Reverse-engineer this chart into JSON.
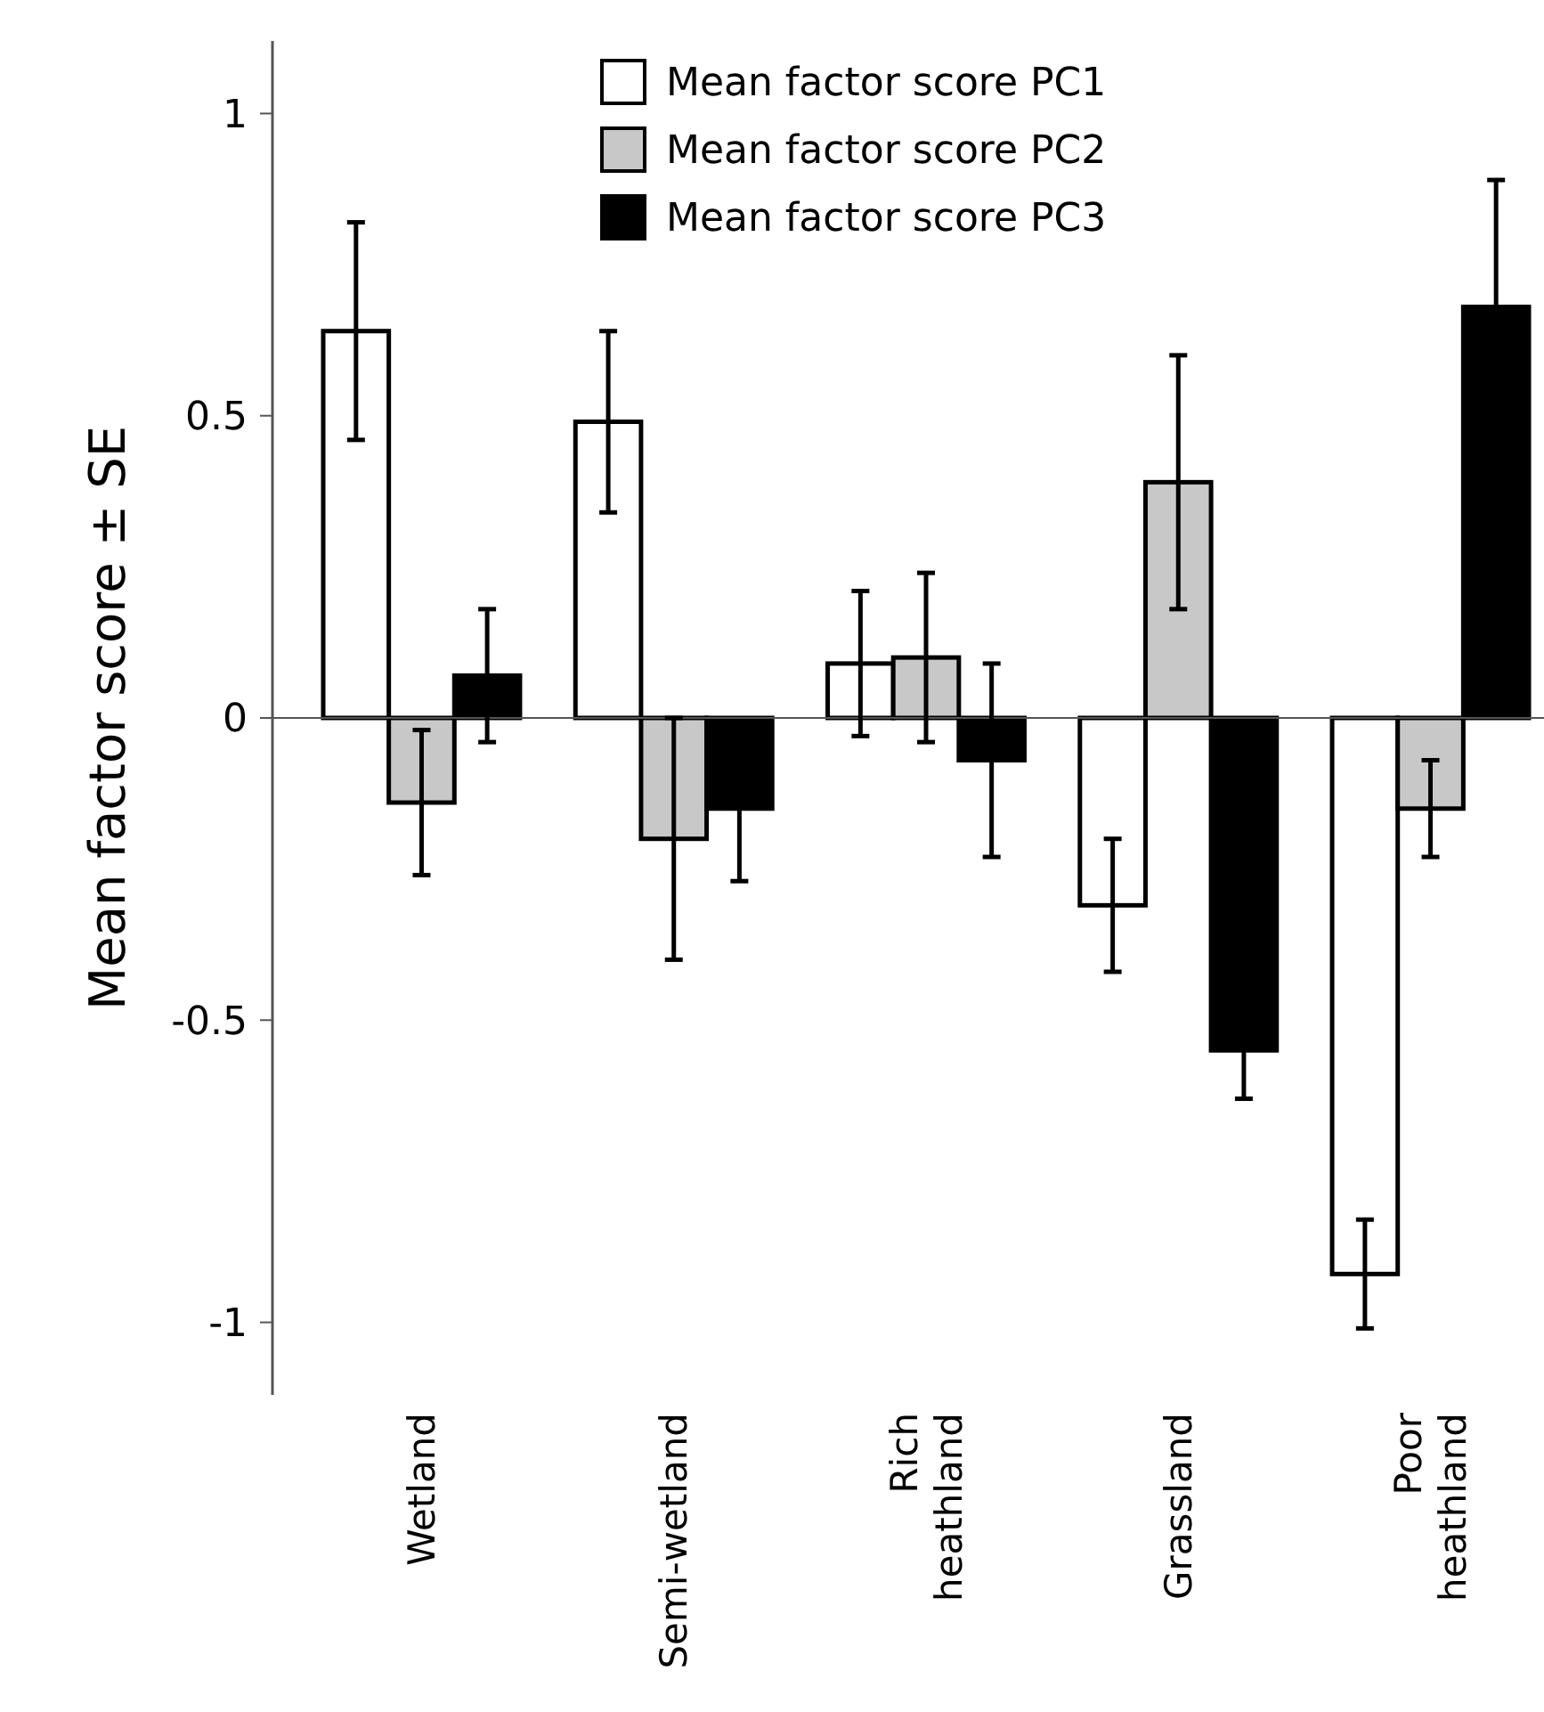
{
  "chart_data": {
    "type": "bar",
    "ylabel": "Mean factor score ± SE",
    "categories": [
      "Wetland",
      "Semi-wetland",
      "Rich heathland",
      "Grassland",
      "Poor heathland"
    ],
    "series": [
      {
        "name": "Mean factor score PC1",
        "color": "#ffffff",
        "values": [
          0.64,
          0.49,
          0.09,
          -0.31,
          -0.92
        ],
        "errors": [
          0.18,
          0.15,
          0.12,
          0.11,
          0.09
        ]
      },
      {
        "name": "Mean factor score PC2",
        "color": "#c8c8c8",
        "values": [
          -0.14,
          -0.2,
          0.1,
          0.39,
          -0.15
        ],
        "errors": [
          0.12,
          0.2,
          0.14,
          0.21,
          0.08
        ]
      },
      {
        "name": "Mean factor score PC3",
        "color": "#000000",
        "values": [
          0.07,
          -0.15,
          -0.07,
          -0.55,
          0.68
        ],
        "errors": [
          0.11,
          0.12,
          0.16,
          0.08,
          0.21
        ]
      }
    ],
    "ylim": [
      -1.12,
      1.12
    ],
    "yticks": [
      -1,
      -0.5,
      0,
      0.5,
      1
    ],
    "legend": "top"
  }
}
